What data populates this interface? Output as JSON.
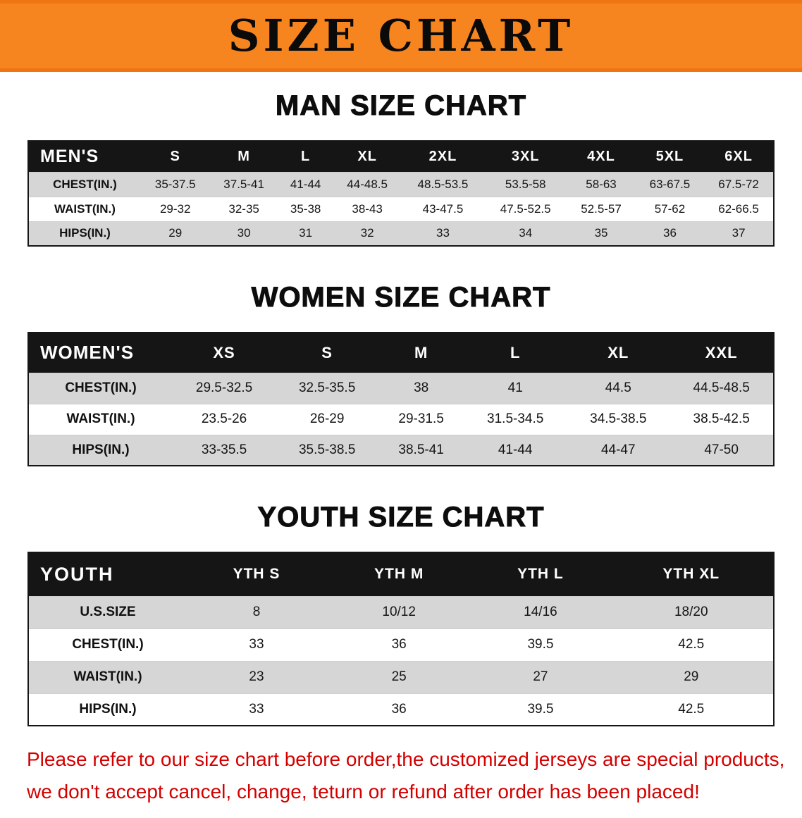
{
  "banner": {
    "title": "SIZE CHART",
    "bg_color": "#F6851F"
  },
  "sections": [
    {
      "heading": "MAN SIZE CHART",
      "table": {
        "header": [
          "MEN'S",
          "S",
          "M",
          "L",
          "XL",
          "2XL",
          "3XL",
          "4XL",
          "5XL",
          "6XL"
        ],
        "rows": [
          {
            "label": "CHEST(IN.)",
            "values": [
              "35-37.5",
              "37.5-41",
              "41-44",
              "44-48.5",
              "48.5-53.5",
              "53.5-58",
              "58-63",
              "63-67.5",
              "67.5-72"
            ]
          },
          {
            "label": "WAIST(IN.)",
            "values": [
              "29-32",
              "32-35",
              "35-38",
              "38-43",
              "43-47.5",
              "47.5-52.5",
              "52.5-57",
              "57-62",
              "62-66.5"
            ]
          },
          {
            "label": "HIPS(IN.)",
            "values": [
              "29",
              "30",
              "31",
              "32",
              "33",
              "34",
              "35",
              "36",
              "37"
            ]
          }
        ]
      }
    },
    {
      "heading": "WOMEN SIZE CHART",
      "table": {
        "header": [
          "WOMEN'S",
          "XS",
          "S",
          "M",
          "L",
          "XL",
          "XXL"
        ],
        "rows": [
          {
            "label": "CHEST(IN.)",
            "values": [
              "29.5-32.5",
              "32.5-35.5",
              "38",
              "41",
              "44.5",
              "44.5-48.5"
            ]
          },
          {
            "label": "WAIST(IN.)",
            "values": [
              "23.5-26",
              "26-29",
              "29-31.5",
              "31.5-34.5",
              "34.5-38.5",
              "38.5-42.5"
            ]
          },
          {
            "label": "HIPS(IN.)",
            "values": [
              "33-35.5",
              "35.5-38.5",
              "38.5-41",
              "41-44",
              "44-47",
              "47-50"
            ]
          }
        ]
      }
    },
    {
      "heading": "YOUTH SIZE CHART",
      "table": {
        "header": [
          "YOUTH",
          "YTH S",
          "YTH M",
          "YTH L",
          "YTH XL"
        ],
        "rows": [
          {
            "label": "U.S.SIZE",
            "values": [
              "8",
              "10/12",
              "14/16",
              "18/20"
            ]
          },
          {
            "label": "CHEST(IN.)",
            "values": [
              "33",
              "36",
              "39.5",
              "42.5"
            ]
          },
          {
            "label": "WAIST(IN.)",
            "values": [
              "23",
              "25",
              "27",
              "29"
            ]
          },
          {
            "label": "HIPS(IN.)",
            "values": [
              "33",
              "36",
              "39.5",
              "42.5"
            ]
          }
        ]
      }
    }
  ],
  "disclaimer": {
    "color": "#d40000",
    "lines": [
      "Please refer to our size chart before order,the customized jerseys are special products,",
      "we don't accept cancel, change, teturn or refund after order has been placed!"
    ]
  }
}
